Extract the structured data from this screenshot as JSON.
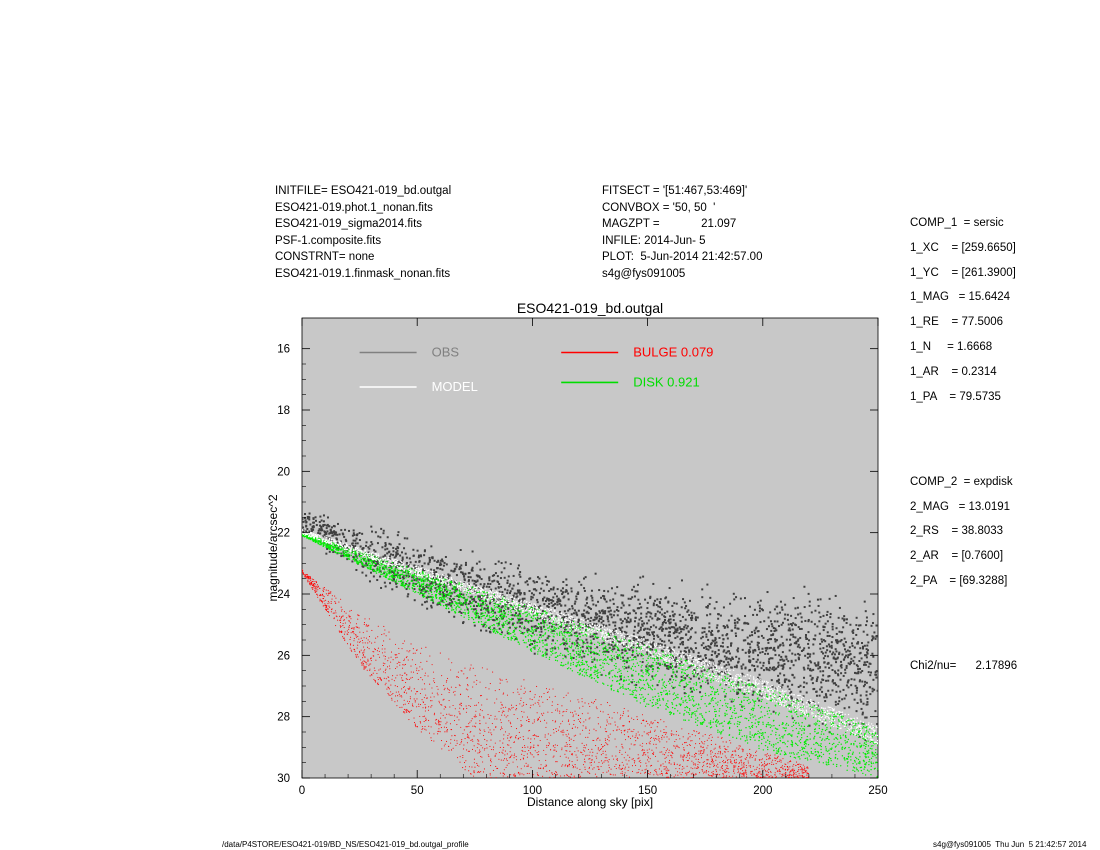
{
  "header_left": [
    "INITFILE= ESO421-019_bd.outgal",
    "ESO421-019.phot.1_nonan.fits",
    "ESO421-019_sigma2014.fits",
    "PSF-1.composite.fits",
    "CONSTRNT= none",
    "ESO421-019.1.finmask_nonan.fits"
  ],
  "header_middle": [
    "FITSECT = '[51:467,53:469]'",
    "CONVBOX = '50, 50  '",
    "MAGZPT =             21.097",
    "INFILE: 2014-Jun- 5",
    "PLOT:  5-Jun-2014 21:42:57.00",
    "s4g@fys091005"
  ],
  "params_comp1": [
    "COMP_1  = sersic",
    "1_XC    = [259.6650]",
    "1_YC    = [261.3900]",
    "1_MAG   = 15.6424",
    "1_RE    = 77.5006",
    "1_N     = 1.6668",
    "1_AR    = 0.2314",
    "1_PA    = 79.5735"
  ],
  "params_comp2": [
    "COMP_2  = expdisk",
    "2_MAG   = 13.0191",
    "2_RS    = 38.8033",
    "2_AR    = [0.7600]",
    "2_PA    = [69.3288]"
  ],
  "chi2": "Chi2/nu=      2.17896",
  "footer_left": "/data/P4STORE/ESO421-019/BD_NS/ESO421-019_bd.outgal_profile",
  "footer_right": "s4g@fys091005  Thu Jun  5 21:42:57 2014",
  "chart_data": {
    "type": "scatter",
    "title": "ESO421-019_bd.outgal",
    "xlabel": "Distance along sky [pix]",
    "ylabel": "magnitude/arcsec^2",
    "xlim": [
      0,
      250
    ],
    "ylim": [
      30,
      15
    ],
    "y_inverted": true,
    "xticks": [
      0,
      50,
      100,
      150,
      200,
      250
    ],
    "yticks": [
      16,
      18,
      20,
      22,
      24,
      26,
      28,
      30
    ],
    "background_color": "#c8c8c8",
    "legend": [
      {
        "name": "OBS",
        "color": "#808080"
      },
      {
        "name": "MODEL",
        "color": "#ffffff"
      },
      {
        "name": "BULGE  0.079",
        "color": "#ff0000"
      },
      {
        "name": "DISK  0.921",
        "color": "#00dd00"
      }
    ],
    "series": [
      {
        "name": "OBS",
        "color": "#404040",
        "x": [
          2,
          10,
          20,
          30,
          40,
          50,
          60,
          80,
          100,
          120,
          140,
          160,
          180,
          200,
          220,
          240,
          250
        ],
        "y": [
          21.7,
          22.0,
          22.4,
          22.7,
          23.0,
          23.3,
          23.6,
          24.0,
          24.4,
          24.8,
          25.1,
          25.4,
          25.7,
          25.9,
          26.1,
          26.3,
          26.4
        ],
        "scatter_mag": [
          0.4,
          0.6,
          0.8,
          0.9,
          1.0,
          1.0,
          1.1,
          1.2,
          1.3,
          1.4,
          1.5,
          1.6,
          1.7,
          1.8,
          2.0,
          2.2,
          2.2
        ]
      },
      {
        "name": "MODEL",
        "color": "#ffffff",
        "x": [
          0,
          50,
          100,
          150,
          200,
          250
        ],
        "y": [
          21.9,
          23.1,
          24.3,
          25.5,
          26.8,
          28.3
        ],
        "spread": [
          0.15,
          0.3,
          0.4,
          0.5,
          0.6,
          0.6
        ]
      },
      {
        "name": "DISK",
        "color": "#00ee00",
        "x": [
          0,
          50,
          100,
          150,
          200,
          250
        ],
        "y_bright": [
          22.0,
          23.2,
          24.4,
          25.7,
          27.0,
          28.4
        ],
        "y_faint": [
          22.1,
          24.0,
          25.9,
          27.7,
          29.1,
          30.0
        ]
      },
      {
        "name": "BULGE",
        "color": "#ff0000",
        "x": [
          0,
          25,
          50,
          75,
          100,
          125,
          150,
          175,
          200,
          220
        ],
        "y_bright": [
          23.2,
          24.6,
          25.6,
          26.3,
          26.8,
          27.3,
          27.9,
          28.5,
          29.1,
          29.6
        ],
        "y_faint": [
          23.3,
          26.3,
          28.4,
          30.0,
          30.0,
          30.0,
          30.0,
          30.0,
          30.0,
          30.0
        ]
      }
    ]
  }
}
